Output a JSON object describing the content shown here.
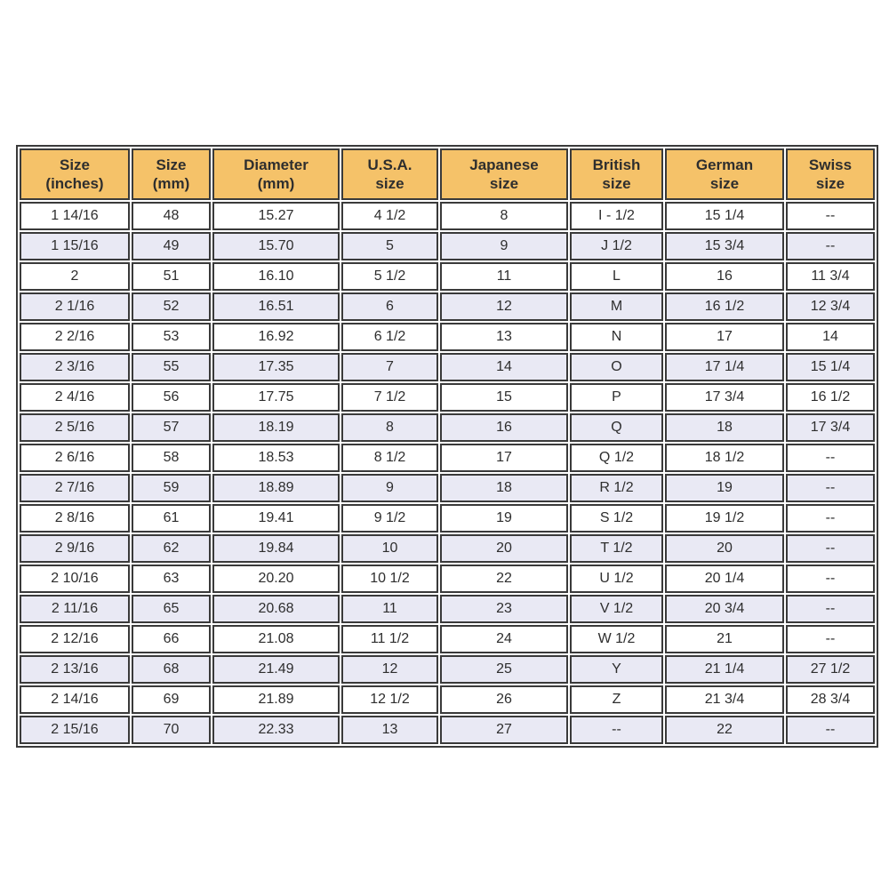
{
  "colors": {
    "header_bg": "#f5c269",
    "row_alt_bg": "#e9e9f4",
    "row_bg": "#ffffff",
    "border": "#3a3a3a",
    "text": "#2e2e2e",
    "page_bg": "#ffffff"
  },
  "chart_data": {
    "type": "table",
    "title": "",
    "columns": [
      "Size\n(inches)",
      "Size\n(mm)",
      "Diameter\n(mm)",
      "U.S.A.\nsize",
      "Japanese\nsize",
      "British\nsize",
      "German\nsize",
      "Swiss\nsize"
    ],
    "rows": [
      [
        "1 14/16",
        "48",
        "15.27",
        "4 1/2",
        "8",
        "I - 1/2",
        "15 1/4",
        "--"
      ],
      [
        "1 15/16",
        "49",
        "15.70",
        "5",
        "9",
        "J 1/2",
        "15 3/4",
        "--"
      ],
      [
        "2",
        "51",
        "16.10",
        "5 1/2",
        "11",
        "L",
        "16",
        "11 3/4"
      ],
      [
        "2 1/16",
        "52",
        "16.51",
        "6",
        "12",
        "M",
        "16 1/2",
        "12 3/4"
      ],
      [
        "2 2/16",
        "53",
        "16.92",
        "6 1/2",
        "13",
        "N",
        "17",
        "14"
      ],
      [
        "2 3/16",
        "55",
        "17.35",
        "7",
        "14",
        "O",
        "17 1/4",
        "15 1/4"
      ],
      [
        "2 4/16",
        "56",
        "17.75",
        "7 1/2",
        "15",
        "P",
        "17 3/4",
        "16 1/2"
      ],
      [
        "2 5/16",
        "57",
        "18.19",
        "8",
        "16",
        "Q",
        "18",
        "17 3/4"
      ],
      [
        "2 6/16",
        "58",
        "18.53",
        "8 1/2",
        "17",
        "Q 1/2",
        "18 1/2",
        "--"
      ],
      [
        "2 7/16",
        "59",
        "18.89",
        "9",
        "18",
        "R 1/2",
        "19",
        "--"
      ],
      [
        "2 8/16",
        "61",
        "19.41",
        "9 1/2",
        "19",
        "S 1/2",
        "19 1/2",
        "--"
      ],
      [
        "2 9/16",
        "62",
        "19.84",
        "10",
        "20",
        "T 1/2",
        "20",
        "--"
      ],
      [
        "2 10/16",
        "63",
        "20.20",
        "10 1/2",
        "22",
        "U 1/2",
        "20 1/4",
        "--"
      ],
      [
        "2 11/16",
        "65",
        "20.68",
        "11",
        "23",
        "V 1/2",
        "20 3/4",
        "--"
      ],
      [
        "2 12/16",
        "66",
        "21.08",
        "11 1/2",
        "24",
        "W 1/2",
        "21",
        "--"
      ],
      [
        "2 13/16",
        "68",
        "21.49",
        "12",
        "25",
        "Y",
        "21 1/4",
        "27 1/2"
      ],
      [
        "2 14/16",
        "69",
        "21.89",
        "12 1/2",
        "26",
        "Z",
        "21 3/4",
        "28 3/4"
      ],
      [
        "2 15/16",
        "70",
        "22.33",
        "13",
        "27",
        "--",
        "22",
        "--"
      ]
    ]
  }
}
